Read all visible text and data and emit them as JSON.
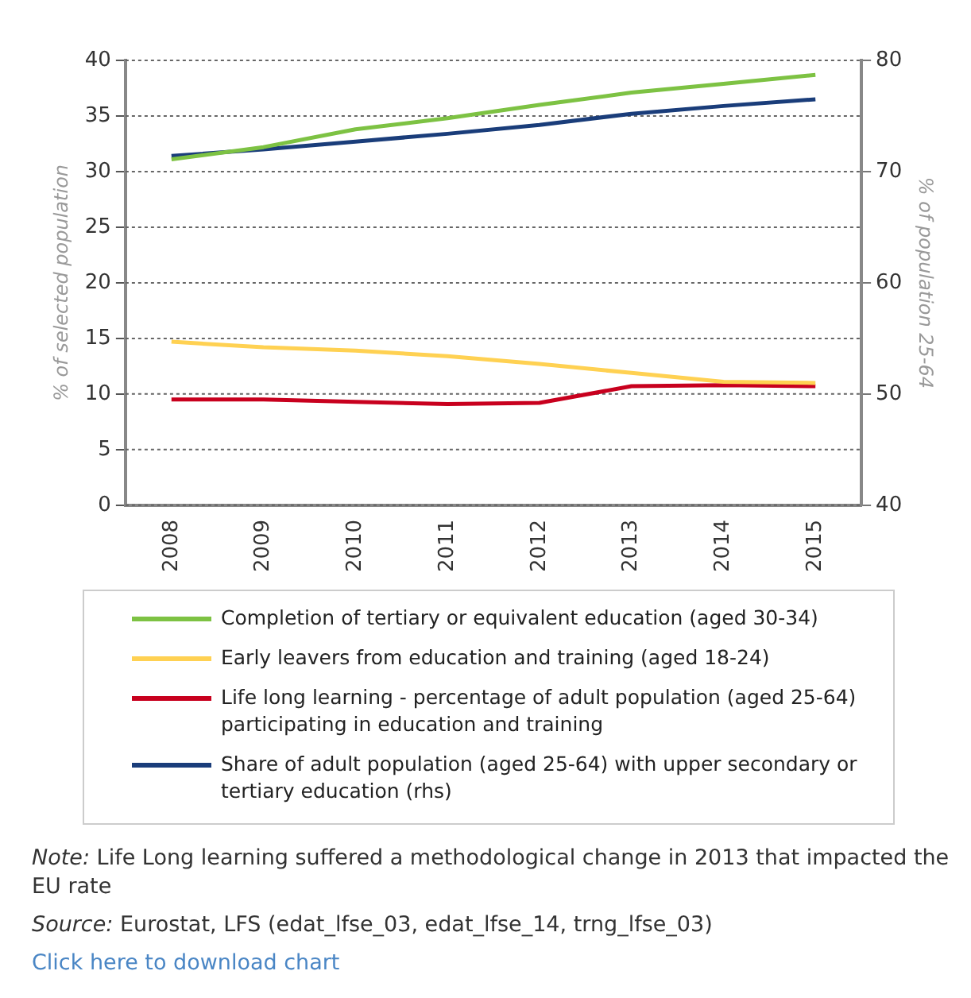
{
  "chart_data": {
    "type": "line",
    "ylabel": "% of selected population",
    "y2label": "% of population 25-64",
    "categories": [
      "2008",
      "2009",
      "2010",
      "2011",
      "2012",
      "2013",
      "2014",
      "2015"
    ],
    "series": [
      {
        "name": "Completion of tertiary or equivalent education (aged 30-34)",
        "color": "#7dc243",
        "values": [
          31.1,
          32.2,
          33.8,
          34.8,
          36.0,
          37.1,
          37.9,
          38.7
        ]
      },
      {
        "name": "Early leavers from education and training (aged 18-24)",
        "color": "#ffd152",
        "values": [
          14.7,
          14.2,
          13.9,
          13.4,
          12.7,
          11.9,
          11.1,
          11.0
        ]
      },
      {
        "name": "Life long learning - percentage of adult population (aged 25-64) participating in education and training",
        "color": "#c8001e",
        "values": [
          9.5,
          9.5,
          9.3,
          9.1,
          9.2,
          10.7,
          10.8,
          10.7
        ]
      },
      {
        "name": "Share of adult population (aged 25-64) with upper secondary or tertiary education (rhs)",
        "color": "#1a3d7a",
        "axis": "y2",
        "values": [
          71.4,
          72.0,
          72.7,
          73.4,
          74.2,
          75.2,
          75.9,
          76.5
        ]
      }
    ],
    "ylim": [
      0,
      40
    ],
    "yticks": [
      0,
      5,
      10,
      15,
      20,
      25,
      30,
      35,
      40
    ],
    "y2lim": [
      40,
      80
    ],
    "y2ticks": [
      40,
      50,
      60,
      70,
      80
    ],
    "grid": "y",
    "legend": "bottom",
    "marker": "none",
    "line_style": "solid",
    "annotations": [
      "Note: Life Long learning suffered a methodological change in 2013 that impacted the EU rate",
      "Source: Eurostat, LFS (edat_lfse_03, edat_lfse_14, trng_lfse_03)",
      "Click here to download chart"
    ]
  }
}
